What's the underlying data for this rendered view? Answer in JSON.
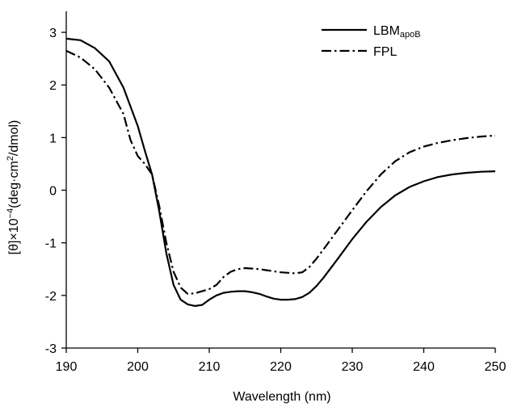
{
  "chart_data": {
    "type": "line",
    "xlabel": "Wavelength (nm)",
    "ylabel": "[θ]×10",
    "ylabel_sup1": "−4",
    "ylabel_mid": "(deg·cm",
    "ylabel_sup2": "2",
    "ylabel_end": "/dmol)",
    "xlim": [
      190,
      250
    ],
    "ylim": [
      -3,
      3.4
    ],
    "xticks": [
      190,
      200,
      210,
      220,
      230,
      240,
      250
    ],
    "yticks": [
      3,
      2,
      1,
      0,
      -1,
      -2,
      -3
    ],
    "xtick_labels": [
      "190",
      "200",
      "210",
      "220",
      "230",
      "240",
      "250"
    ],
    "ytick_labels": [
      "3",
      "2",
      "1",
      "0",
      "-1",
      "-2",
      "-3"
    ],
    "grid": false,
    "legend": "top-right",
    "series": [
      {
        "name": "LBM",
        "name_sub": "apoB",
        "line_style": "solid",
        "color": "#000000",
        "points": [
          [
            190,
            2.88
          ],
          [
            192,
            2.85
          ],
          [
            194,
            2.7
          ],
          [
            196,
            2.45
          ],
          [
            198,
            1.95
          ],
          [
            200,
            1.22
          ],
          [
            201,
            0.75
          ],
          [
            202,
            0.3
          ],
          [
            203,
            -0.4
          ],
          [
            204,
            -1.2
          ],
          [
            205,
            -1.8
          ],
          [
            206,
            -2.08
          ],
          [
            207,
            -2.17
          ],
          [
            208,
            -2.2
          ],
          [
            209,
            -2.18
          ],
          [
            210,
            -2.08
          ],
          [
            211,
            -2.0
          ],
          [
            212,
            -1.95
          ],
          [
            213,
            -1.93
          ],
          [
            214,
            -1.92
          ],
          [
            215,
            -1.92
          ],
          [
            216,
            -1.94
          ],
          [
            217,
            -1.97
          ],
          [
            218,
            -2.02
          ],
          [
            219,
            -2.06
          ],
          [
            220,
            -2.08
          ],
          [
            221,
            -2.08
          ],
          [
            222,
            -2.07
          ],
          [
            223,
            -2.03
          ],
          [
            224,
            -1.95
          ],
          [
            225,
            -1.82
          ],
          [
            226,
            -1.66
          ],
          [
            228,
            -1.3
          ],
          [
            230,
            -0.93
          ],
          [
            232,
            -0.6
          ],
          [
            234,
            -0.32
          ],
          [
            236,
            -0.1
          ],
          [
            238,
            0.06
          ],
          [
            240,
            0.17
          ],
          [
            242,
            0.25
          ],
          [
            244,
            0.3
          ],
          [
            246,
            0.33
          ],
          [
            248,
            0.35
          ],
          [
            250,
            0.36
          ]
        ]
      },
      {
        "name": "FPL",
        "line_style": "dash-dot",
        "color": "#000000",
        "points": [
          [
            190,
            2.65
          ],
          [
            192,
            2.52
          ],
          [
            194,
            2.3
          ],
          [
            196,
            1.95
          ],
          [
            198,
            1.45
          ],
          [
            199,
            0.95
          ],
          [
            200,
            0.65
          ],
          [
            201,
            0.5
          ],
          [
            202,
            0.3
          ],
          [
            203,
            -0.3
          ],
          [
            204,
            -1.0
          ],
          [
            205,
            -1.55
          ],
          [
            206,
            -1.85
          ],
          [
            207,
            -1.97
          ],
          [
            208,
            -1.96
          ],
          [
            209,
            -1.92
          ],
          [
            210,
            -1.88
          ],
          [
            211,
            -1.8
          ],
          [
            212,
            -1.65
          ],
          [
            213,
            -1.55
          ],
          [
            214,
            -1.5
          ],
          [
            215,
            -1.48
          ],
          [
            216,
            -1.49
          ],
          [
            217,
            -1.5
          ],
          [
            218,
            -1.52
          ],
          [
            219,
            -1.54
          ],
          [
            220,
            -1.56
          ],
          [
            221,
            -1.57
          ],
          [
            222,
            -1.58
          ],
          [
            223,
            -1.56
          ],
          [
            224,
            -1.46
          ],
          [
            225,
            -1.3
          ],
          [
            226,
            -1.12
          ],
          [
            228,
            -0.75
          ],
          [
            230,
            -0.38
          ],
          [
            232,
            -0.02
          ],
          [
            234,
            0.3
          ],
          [
            236,
            0.55
          ],
          [
            238,
            0.72
          ],
          [
            240,
            0.83
          ],
          [
            242,
            0.9
          ],
          [
            244,
            0.95
          ],
          [
            246,
            0.99
          ],
          [
            248,
            1.02
          ],
          [
            250,
            1.04
          ]
        ]
      }
    ]
  }
}
